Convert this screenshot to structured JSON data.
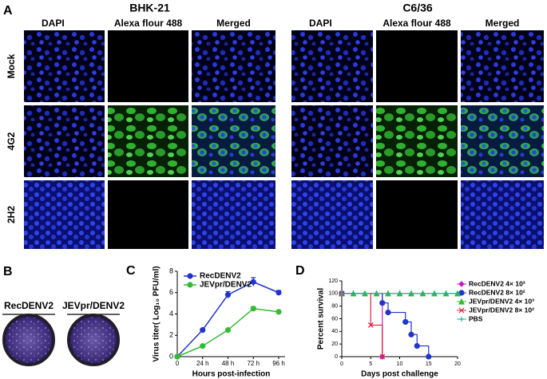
{
  "panels": {
    "A": {
      "label": "A",
      "cell_lines": [
        "BHK-21",
        "C6/36"
      ],
      "columns": [
        "DAPI",
        "Alexa flour 488",
        "Merged"
      ],
      "rows": [
        "Mock",
        "4G2",
        "2H2"
      ]
    },
    "B": {
      "label": "B",
      "plates": [
        "RecDENV2",
        "JEVpr/DENV2"
      ]
    },
    "C": {
      "label": "C"
    },
    "D": {
      "label": "D"
    }
  },
  "chart_data": [
    {
      "type": "line",
      "ylabel": "Virus titer( Log₁₀ PFU/ml)",
      "xlabel": "Hours post-infection",
      "categories": [
        "0",
        "24 h",
        "48 h",
        "72 h",
        "96 h"
      ],
      "ylim": [
        0,
        8
      ],
      "yticks": [
        0,
        2,
        4,
        6,
        8
      ],
      "legend": "upper left",
      "series": [
        {
          "name": "RecDENV2",
          "color": "#2233cc",
          "values": [
            0,
            2.5,
            5.8,
            7.0,
            6.0
          ],
          "errors": [
            0,
            0.1,
            0.3,
            0.4,
            0.2
          ]
        },
        {
          "name": "JEVpr/DENV2",
          "color": "#33bb33",
          "values": [
            0,
            1.0,
            2.5,
            4.5,
            4.2
          ],
          "errors": [
            0,
            0.1,
            0.1,
            0.2,
            0.1
          ]
        }
      ]
    },
    {
      "type": "step",
      "ylabel": "Percent survival",
      "xlabel": "Days post challenge",
      "xlim": [
        0,
        20
      ],
      "xticks": [
        0,
        5,
        10,
        15,
        20
      ],
      "ylim": [
        0,
        120
      ],
      "yticks": [
        0,
        20,
        40,
        60,
        80,
        100,
        120
      ],
      "legend": "right",
      "series": [
        {
          "name": "RecDENV2 4× 10³",
          "color": "#c020c0",
          "marker": "diamond",
          "x": [
            0,
            7
          ],
          "values": [
            100,
            0
          ]
        },
        {
          "name": "RecDENV2 8× 10²",
          "color": "#2233cc",
          "marker": "circle",
          "x": [
            0,
            7,
            8,
            11,
            12,
            13,
            15
          ],
          "values": [
            100,
            85,
            70,
            55,
            35,
            17,
            0
          ]
        },
        {
          "name": "JEVpr/DENV2 4× 10³",
          "color": "#33bb33",
          "marker": "triangle",
          "x": [
            0,
            2,
            4,
            6,
            8,
            10,
            12,
            14,
            16,
            18,
            20
          ],
          "values": [
            100,
            100,
            100,
            100,
            100,
            100,
            100,
            100,
            100,
            100,
            100
          ]
        },
        {
          "name": "JEVpr/DENV2 8× 10²",
          "color": "#dd2244",
          "marker": "cross",
          "x": [
            0,
            5,
            7
          ],
          "values": [
            100,
            50,
            0
          ]
        },
        {
          "name": "PBS",
          "color": "#20b0a0",
          "marker": "plus",
          "x": [
            0,
            2,
            4,
            6,
            8,
            10,
            12,
            14,
            16,
            18,
            20
          ],
          "values": [
            100,
            100,
            100,
            100,
            100,
            100,
            100,
            100,
            100,
            100,
            100
          ]
        }
      ]
    }
  ]
}
